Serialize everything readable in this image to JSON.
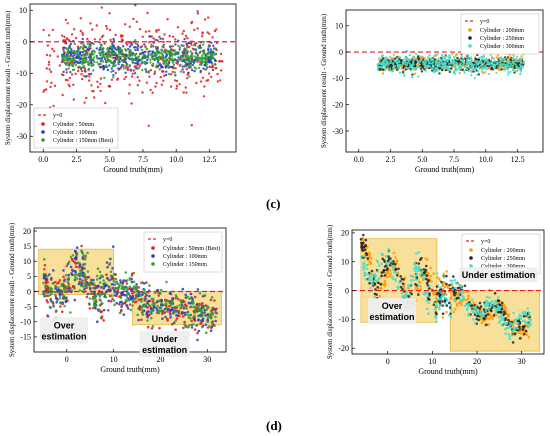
{
  "figure": {
    "label_c": "(c)",
    "label_d": "(d)",
    "axis_x_label": "Ground truth(mm)",
    "axis_y_label": "System displacement result - Ground truth(mm)"
  },
  "chart_data": [
    {
      "type": "scatter",
      "panel": "c-left",
      "xlabel": "Ground truth(mm)",
      "ylabel": "System displacement result - Ground truth(mm)",
      "xlim": [
        -1,
        14.5
      ],
      "ylim": [
        -35,
        12
      ],
      "xticks": [
        0.0,
        2.5,
        5.0,
        7.5,
        10.0,
        12.5
      ],
      "yticks": [
        10,
        0,
        -10,
        -20,
        -30
      ],
      "reference_line": {
        "name": "y=0",
        "y": 0,
        "color": "#d62728"
      },
      "legend_position": "bottom-left",
      "series": [
        {
          "name": "Cylinder : 50mm",
          "color": "#e41a1c",
          "x_range": [
            0,
            13.5
          ],
          "y_center": -5,
          "y_spread": 6
        },
        {
          "name": "Cylinder : 100mm",
          "color": "#1f3fbf",
          "x_range": [
            1.5,
            13
          ],
          "y_center": -5,
          "y_spread": 2.5
        },
        {
          "name": "Cylinder : 150mm (Best)",
          "color": "#2ca02c",
          "x_range": [
            1.5,
            13
          ],
          "y_center": -5,
          "y_spread": 2
        }
      ]
    },
    {
      "type": "scatter",
      "panel": "c-right",
      "xlabel": "Ground truth(mm)",
      "ylabel": "System displacement result - Ground truth(mm)",
      "xlim": [
        -1,
        14.5
      ],
      "ylim": [
        -38,
        16
      ],
      "xticks": [
        0.0,
        2.5,
        5.0,
        7.5,
        10.0,
        12.5
      ],
      "yticks": [
        10,
        0,
        -10,
        -20,
        -30
      ],
      "reference_line": {
        "name": "y=0",
        "y": 0,
        "color": "#d62728"
      },
      "legend_position": "top-right",
      "series": [
        {
          "name": "Cylinder : 200mm",
          "color": "#ff9900",
          "x_range": [
            1.5,
            13
          ],
          "y_center": -4.5,
          "y_spread": 1.5
        },
        {
          "name": "Cylinder : 250mm",
          "color": "#222222",
          "x_range": [
            1.5,
            13
          ],
          "y_center": -4.5,
          "y_spread": 1.2
        },
        {
          "name": "Cylinder : 300mm",
          "color": "#40e0d0",
          "x_range": [
            1.5,
            13
          ],
          "y_center": -4.5,
          "y_spread": 1.8
        }
      ]
    },
    {
      "type": "scatter",
      "panel": "d-left",
      "xlabel": "Ground truth(mm)",
      "ylabel": "System displacement result - Ground truth(mm)",
      "xlim": [
        -7,
        34
      ],
      "ylim": [
        -20,
        21
      ],
      "xticks": [
        0,
        10,
        20,
        30
      ],
      "yticks": [
        20,
        15,
        10,
        5,
        0,
        -5,
        -10,
        -15
      ],
      "reference_line": {
        "name": "y=0",
        "y": 0,
        "color": "#d62728"
      },
      "legend_position": "top-right",
      "regions": [
        {
          "x": [
            -6,
            10
          ],
          "y": [
            -1,
            14
          ]
        },
        {
          "x": [
            14,
            33
          ],
          "y": [
            -11,
            0
          ]
        }
      ],
      "annotations": [
        {
          "text": "Over estimation",
          "lines": [
            "Over",
            "estimation"
          ]
        },
        {
          "text": "Under estimation",
          "lines": [
            "Under",
            "estimation"
          ]
        }
      ],
      "series": [
        {
          "name": "Cylinder : 50mm (Best)",
          "color": "#e41a1c"
        },
        {
          "name": "Cylinder : 100mm",
          "color": "#1f3fbf"
        },
        {
          "name": "Cylinder : 150mm",
          "color": "#2ca02c"
        }
      ]
    },
    {
      "type": "scatter",
      "panel": "d-right",
      "xlabel": "Ground truth(mm)",
      "ylabel": "System displacement result - Ground truth(mm)",
      "xlim": [
        -8,
        35
      ],
      "ylim": [
        -22,
        21
      ],
      "xticks": [
        0,
        10,
        20,
        30
      ],
      "yticks": [
        20,
        10,
        0,
        -10,
        -20
      ],
      "reference_line": {
        "name": "y=0",
        "y": 0,
        "color": "#d62728"
      },
      "legend_position": "top-right",
      "regions": [
        {
          "x": [
            -6,
            11
          ],
          "y": [
            -11,
            18
          ]
        },
        {
          "x": [
            14,
            34
          ],
          "y": [
            -21,
            0
          ]
        }
      ],
      "annotations": [
        {
          "text": "Over estimation",
          "lines": [
            "Over",
            "estimation"
          ]
        },
        {
          "text": "Under estimation",
          "lines": [
            "Under estimation"
          ]
        }
      ],
      "series": [
        {
          "name": "Cylinder : 200mm",
          "color": "#ff9900"
        },
        {
          "name": "Cylinder : 250mm",
          "color": "#222222"
        },
        {
          "name": "Cylinder : 300mm",
          "color": "#40e0d0"
        }
      ]
    }
  ]
}
